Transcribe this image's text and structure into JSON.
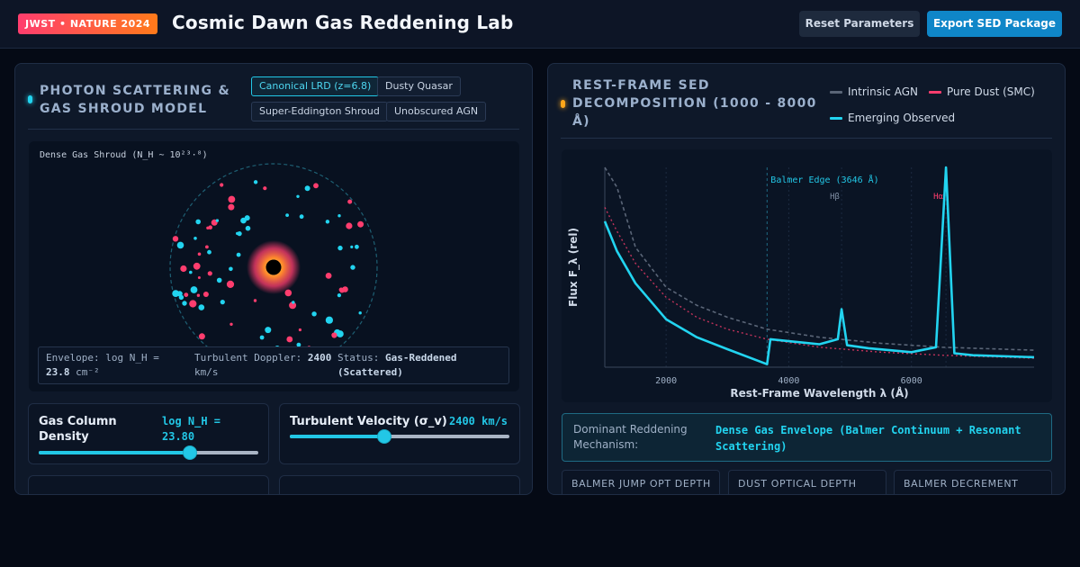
{
  "header": {
    "badge": "JWST • NATURE 2024",
    "title": "Cosmic Dawn Gas Reddening Lab",
    "reset_label": "Reset Parameters",
    "export_label": "Export SED Package"
  },
  "left_panel": {
    "title_line1": "PHOTON SCATTERING &",
    "title_line2": "GAS SHROUD MODEL",
    "presets": [
      "Canonical LRD (z=6.8)",
      "Dusty Quasar",
      "Super-Eddington Shroud",
      "Unobscured AGN"
    ],
    "active_preset": "Canonical LRD (z=6.8)",
    "viz_label": "Dense Gas Shroud (N_H ~ 10²³·⁸)",
    "info": {
      "envelope_label": "Envelope: log N_H =",
      "envelope_value": "23.8",
      "envelope_unit": "cm⁻²",
      "doppler_label": "Turbulent Doppler:",
      "doppler_value": "2400",
      "doppler_unit": "km/s",
      "status_label": "Status:",
      "status_value": "Gas-Reddened",
      "status_value2": "(Scattered)"
    },
    "controls": [
      {
        "label_line1": "Gas Column",
        "label_line2": "Density",
        "value_line1": "log N_H =",
        "value_line2": "23.80",
        "level": 0.69
      },
      {
        "label_line1": "Turbulent Velocity (σ_v)",
        "label_line2": "",
        "value_line1": "2400 km/s",
        "value_line2": "",
        "level": 0.43
      }
    ]
  },
  "right_panel": {
    "title_line1": "REST-FRAME SED",
    "title_line2": "DECOMPOSITION (1000 - 8000",
    "title_line3": "Å)",
    "legend": [
      {
        "name": "Intrinsic AGN",
        "color": "#5a6577"
      },
      {
        "name": "Pure Dust (SMC)",
        "color": "#ff3d6e"
      },
      {
        "name": "Emerging Observed",
        "color": "#22d4f0"
      }
    ],
    "mechanism_label": "Dominant Reddening Mechanism:",
    "mechanism_value": "Dense Gas Envelope (Balmer Continuum + Resonant Scattering)",
    "stats": [
      "BALMER JUMP OPT DEPTH",
      "DUST OPTICAL DEPTH",
      "BALMER DECREMENT"
    ]
  },
  "chart_data": {
    "type": "line",
    "xlabel": "Rest-Frame Wavelength λ (Å)",
    "ylabel": "Flux F_λ (rel)",
    "xlim": [
      1000,
      8000
    ],
    "ylim": [
      0,
      1
    ],
    "x_ticks": [
      2000,
      4000,
      6000
    ],
    "annotations": [
      "Balmer Edge (3646 Å)",
      "Hβ",
      "Hα"
    ],
    "balmer_edge": 3646,
    "hbeta": 4861,
    "halpha": 6563,
    "series": [
      {
        "name": "Intrinsic AGN",
        "x": [
          1000,
          1200,
          1500,
          2000,
          2500,
          3000,
          3646,
          4500,
          5500,
          6500,
          7500,
          8000
        ],
        "y": [
          1.0,
          0.9,
          0.6,
          0.4,
          0.31,
          0.25,
          0.19,
          0.15,
          0.12,
          0.1,
          0.09,
          0.085
        ]
      },
      {
        "name": "Pure Dust (SMC)",
        "x": [
          1000,
          1200,
          1500,
          2000,
          2500,
          3000,
          3646,
          4500,
          5500,
          6500,
          7500,
          8000
        ],
        "y": [
          0.8,
          0.68,
          0.52,
          0.35,
          0.25,
          0.19,
          0.14,
          0.1,
          0.075,
          0.06,
          0.05,
          0.045
        ]
      },
      {
        "name": "Emerging Observed",
        "x": [
          1000,
          1200,
          1500,
          2000,
          2500,
          3000,
          3646,
          3700,
          4000,
          4500,
          4800,
          4861,
          4950,
          5300,
          6000,
          6400,
          6563,
          6700,
          7000,
          8000
        ],
        "y": [
          0.73,
          0.58,
          0.42,
          0.24,
          0.15,
          0.09,
          0.015,
          0.14,
          0.13,
          0.115,
          0.14,
          0.29,
          0.11,
          0.095,
          0.075,
          0.1,
          1.0,
          0.07,
          0.06,
          0.05
        ]
      }
    ]
  }
}
